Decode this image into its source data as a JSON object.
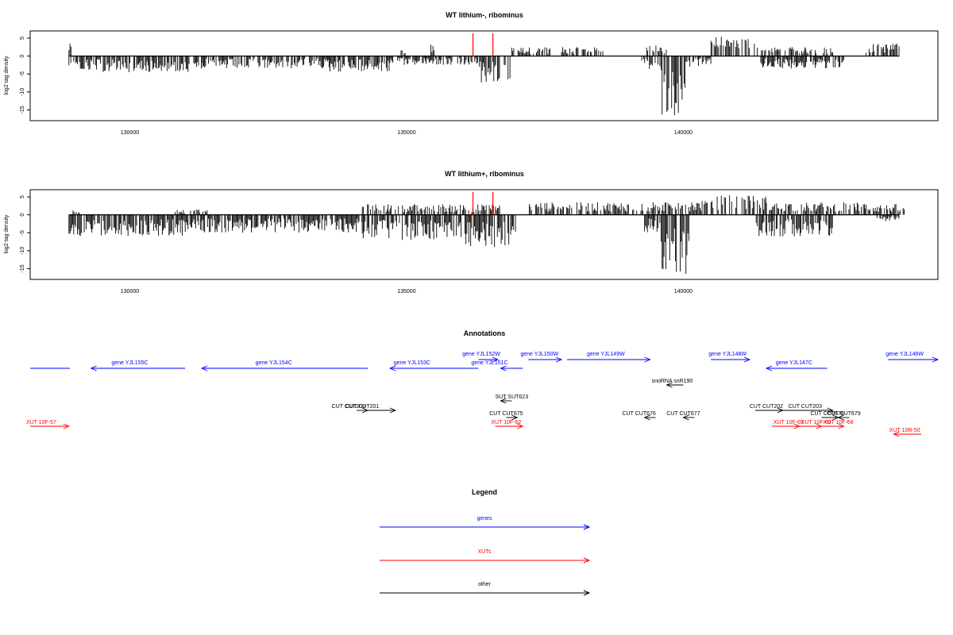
{
  "colors": {
    "genes": "#0000ff",
    "xuts": "#ff0000",
    "other": "#000000",
    "marker": "#ff0000"
  },
  "chart_data": [
    {
      "type": "bar",
      "title": "WT lithium-, ribominus",
      "ylabel": "log2 tag density",
      "xlim": [
        128200,
        144600
      ],
      "ylim": [
        -18,
        7
      ],
      "x_ticks": [
        "130000",
        "135000",
        "140000"
      ],
      "y_ticks": [
        "5",
        "0",
        "-5",
        "-10",
        "-15"
      ],
      "markers_x": [
        136200,
        136560
      ],
      "positive_segments": [
        {
          "start": 128900,
          "end": 128960,
          "max": 3.5
        },
        {
          "start": 134900,
          "end": 135000,
          "max": 2
        },
        {
          "start": 135440,
          "end": 135500,
          "max": 3.5
        },
        {
          "start": 136900,
          "end": 137600,
          "max": 2.5
        },
        {
          "start": 137800,
          "end": 138600,
          "max": 2.5
        },
        {
          "start": 139300,
          "end": 139700,
          "max": 3
        },
        {
          "start": 140500,
          "end": 141300,
          "max": 5.5
        },
        {
          "start": 141300,
          "end": 142700,
          "max": 2.5
        },
        {
          "start": 143300,
          "end": 143900,
          "max": 3.5
        }
      ],
      "negative_segments": [
        {
          "start": 128900,
          "end": 131300,
          "max": 4.5
        },
        {
          "start": 131300,
          "end": 133600,
          "max": 3.5
        },
        {
          "start": 133600,
          "end": 134700,
          "max": 4.5
        },
        {
          "start": 134700,
          "end": 136300,
          "max": 2.5
        },
        {
          "start": 136300,
          "end": 136900,
          "max": 7.5
        },
        {
          "start": 139250,
          "end": 139600,
          "max": 4
        },
        {
          "start": 139600,
          "end": 140050,
          "max": 16.5
        },
        {
          "start": 140050,
          "end": 140500,
          "max": 3
        },
        {
          "start": 141400,
          "end": 142900,
          "max": 3.5
        }
      ]
    },
    {
      "type": "bar",
      "title": "WT lithium+, ribominus",
      "ylabel": "log2 tag density",
      "xlim": [
        128200,
        144600
      ],
      "ylim": [
        -18,
        7
      ],
      "x_ticks": [
        "130000",
        "135000",
        "140000"
      ],
      "y_ticks": [
        "5",
        "0",
        "-5",
        "-10",
        "-15"
      ],
      "markers_x": [
        136200,
        136560
      ],
      "positive_segments": [
        {
          "start": 128900,
          "end": 129100,
          "max": 1.5
        },
        {
          "start": 130800,
          "end": 131400,
          "max": 1.5
        },
        {
          "start": 134200,
          "end": 136700,
          "max": 3
        },
        {
          "start": 137200,
          "end": 139500,
          "max": 3.5
        },
        {
          "start": 139500,
          "end": 140500,
          "max": 4
        },
        {
          "start": 140500,
          "end": 141500,
          "max": 5.5
        },
        {
          "start": 141500,
          "end": 143300,
          "max": 3.5
        },
        {
          "start": 143300,
          "end": 144000,
          "max": 3
        }
      ],
      "negative_segments": [
        {
          "start": 128900,
          "end": 131300,
          "max": 6
        },
        {
          "start": 131300,
          "end": 134200,
          "max": 5
        },
        {
          "start": 134200,
          "end": 135900,
          "max": 7
        },
        {
          "start": 135900,
          "end": 137000,
          "max": 9
        },
        {
          "start": 139300,
          "end": 139600,
          "max": 5
        },
        {
          "start": 139600,
          "end": 140100,
          "max": 17
        },
        {
          "start": 141300,
          "end": 142700,
          "max": 6
        },
        {
          "start": 143500,
          "end": 143900,
          "max": 2
        }
      ]
    }
  ],
  "annotations": {
    "title": "Annotations",
    "genes": [
      {
        "label": "gene YJL155C",
        "start": 129300,
        "end": 131000,
        "strand": "-",
        "row": 1,
        "label_x": 130000
      },
      {
        "label": "gene YJL154C",
        "start": 131300,
        "end": 134300,
        "strand": "-",
        "row": 1,
        "label_x": 132600
      },
      {
        "label": "gene YJL153C",
        "start": 134700,
        "end": 136300,
        "strand": "-",
        "row": 1,
        "label_x": 135100
      },
      {
        "label": "gene YJL152W",
        "start": 136300,
        "end": 136650,
        "strand": "+",
        "row": 0,
        "label_x": 136350
      },
      {
        "label": "gene YJL151C",
        "start": 136700,
        "end": 137100,
        "strand": "-",
        "row": 1,
        "label_x": 136500
      },
      {
        "label": "gene YJL150W",
        "start": 137200,
        "end": 137800,
        "strand": "+",
        "row": 0,
        "label_x": 137400
      },
      {
        "label": "gene YJL149W",
        "start": 137900,
        "end": 139400,
        "strand": "+",
        "row": 0,
        "label_x": 138600
      },
      {
        "label": "gene YJL148W",
        "start": 140500,
        "end": 141200,
        "strand": "+",
        "row": 0,
        "label_x": 140800
      },
      {
        "label": "gene YJL147C",
        "start": 141500,
        "end": 142600,
        "strand": "-",
        "row": 1,
        "label_x": 142000
      },
      {
        "label": "gene YJL146W",
        "start": 143700,
        "end": 144600,
        "strand": "+",
        "row": 0,
        "label_x": 144000
      }
    ],
    "others": [
      {
        "label": "snoRNA snR190",
        "start": 139700,
        "end": 140000,
        "strand": "-",
        "row": 0,
        "label_x": 139800
      },
      {
        "label": "SUT SUT623",
        "start": 136700,
        "end": 136900,
        "strand": "-",
        "row": 1,
        "label_x": 136900
      },
      {
        "label": "CUT CUT200",
        "start": 134100,
        "end": 134300,
        "strand": "+",
        "row": 2,
        "label_x": 133950
      },
      {
        "label": "CUT CUT201",
        "start": 134300,
        "end": 134800,
        "strand": "+",
        "row": 2,
        "label_x": 134200
      },
      {
        "label": "CUT CUT675",
        "start": 136800,
        "end": 137000,
        "strand": "+",
        "row": 3,
        "label_x": 136800
      },
      {
        "label": "CUT CUT676",
        "start": 139300,
        "end": 139500,
        "strand": "-",
        "row": 3,
        "label_x": 139200
      },
      {
        "label": "CUT CUT677",
        "start": 140000,
        "end": 140200,
        "strand": "-",
        "row": 3,
        "label_x": 140000
      },
      {
        "label": "CUT CUT202",
        "start": 141300,
        "end": 141800,
        "strand": "+",
        "row": 2,
        "label_x": 141500
      },
      {
        "label": "CUT CUT203",
        "start": 141800,
        "end": 142700,
        "strand": "+",
        "row": 2,
        "label_x": 142200
      },
      {
        "label": "CUT CUT678",
        "start": 142500,
        "end": 142800,
        "strand": "+",
        "row": 3,
        "label_x": 142600
      },
      {
        "label": "CUT CUT679",
        "start": 142800,
        "end": 143000,
        "strand": "-",
        "row": 3,
        "label_x": 142900
      }
    ],
    "xuts": [
      {
        "label": "XUT 10F-57",
        "start": 128200,
        "end": 128900,
        "strand": "+",
        "row": 0,
        "label_x": 128400
      },
      {
        "label": "XUT 10F-62",
        "start": 136600,
        "end": 137100,
        "strand": "+",
        "row": 0,
        "label_x": 136800
      },
      {
        "label": "XUT 10F-65",
        "start": 141600,
        "end": 142100,
        "strand": "+",
        "row": 0,
        "label_x": 141900
      },
      {
        "label": "XUT 10F-66",
        "start": 142100,
        "end": 142500,
        "strand": "+",
        "row": 0,
        "label_x": 142400
      },
      {
        "label": "XUT 10F-68",
        "start": 142500,
        "end": 142900,
        "strand": "+",
        "row": 0,
        "label_x": 142800
      },
      {
        "label": "XUT 10R-50",
        "start": 143800,
        "end": 144300,
        "strand": "-",
        "row": 1,
        "label_x": 144000
      }
    ]
  },
  "legend": {
    "title": "Legend",
    "items": [
      {
        "label": "genes",
        "color_key": "genes"
      },
      {
        "label": "XUTs",
        "color_key": "xuts"
      },
      {
        "label": "other",
        "color_key": "other"
      }
    ]
  }
}
